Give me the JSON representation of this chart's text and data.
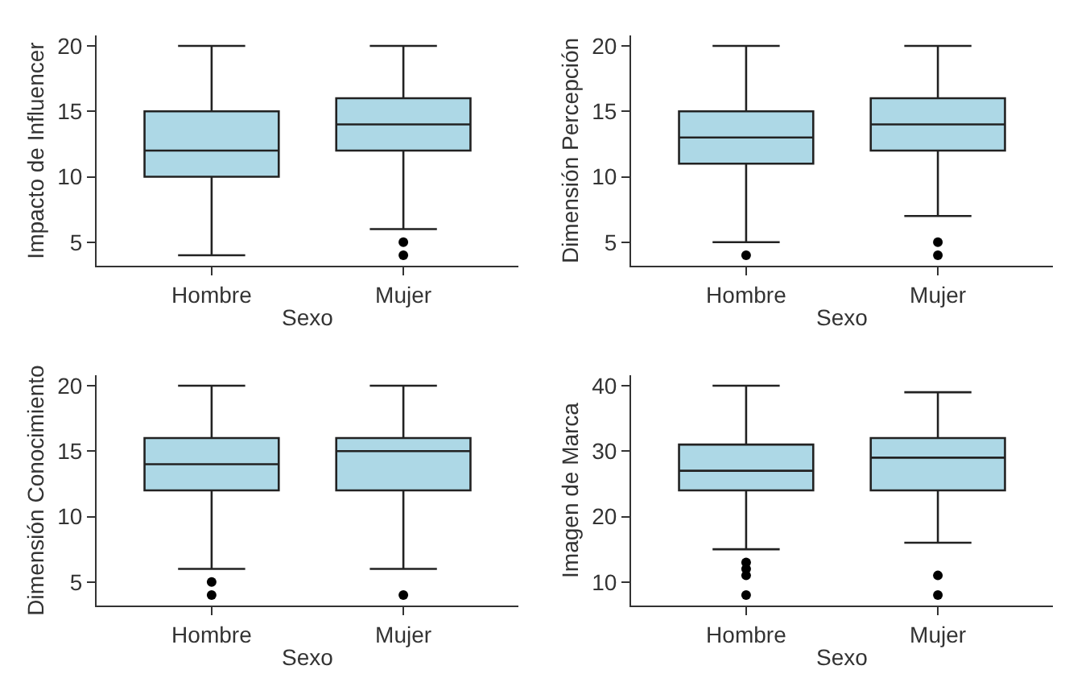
{
  "chart_data": [
    {
      "type": "box",
      "categories": [
        "Hombre",
        "Mujer"
      ],
      "xlabel": "Sexo",
      "ylabel": "Impacto de Influencer",
      "color": "#add8e6",
      "grid": false,
      "ylim": [
        3.2,
        20.8
      ],
      "yticks": [
        5,
        10,
        15,
        20
      ],
      "boxes": [
        {
          "low": 4,
          "q1": 10,
          "median": 12,
          "q3": 15,
          "high": 20
        },
        {
          "low": 6,
          "q1": 12,
          "median": 14,
          "q3": 16,
          "high": 20,
          "outliers": [
            4,
            5
          ]
        }
      ]
    },
    {
      "type": "box",
      "categories": [
        "Hombre",
        "Mujer"
      ],
      "xlabel": "Sexo",
      "ylabel": "Dimensión Percepción",
      "color": "#add8e6",
      "grid": false,
      "ylim": [
        3.2,
        20.8
      ],
      "yticks": [
        5,
        10,
        15,
        20
      ],
      "boxes": [
        {
          "low": 5,
          "q1": 11,
          "median": 13,
          "q3": 15,
          "high": 20,
          "outliers": [
            4
          ]
        },
        {
          "low": 7,
          "q1": 12,
          "median": 14,
          "q3": 16,
          "high": 20,
          "outliers": [
            4,
            5
          ]
        }
      ]
    },
    {
      "type": "box",
      "categories": [
        "Hombre",
        "Mujer"
      ],
      "xlabel": "Sexo",
      "ylabel": "Dimensión Conocimiento",
      "color": "#add8e6",
      "grid": false,
      "ylim": [
        3.2,
        20.8
      ],
      "yticks": [
        5,
        10,
        15,
        20
      ],
      "boxes": [
        {
          "low": 6,
          "q1": 12,
          "median": 14,
          "q3": 16,
          "high": 20,
          "outliers": [
            4,
            5
          ]
        },
        {
          "low": 6,
          "q1": 12,
          "median": 15,
          "q3": 16,
          "high": 20,
          "outliers": [
            4
          ]
        }
      ]
    },
    {
      "type": "box",
      "categories": [
        "Hombre",
        "Mujer"
      ],
      "xlabel": "Sexo",
      "ylabel": "Imagen de Marca",
      "color": "#add8e6",
      "grid": false,
      "ylim": [
        6.4,
        41.6
      ],
      "yticks": [
        10,
        20,
        30,
        40
      ],
      "boxes": [
        {
          "low": 15,
          "q1": 24,
          "median": 27,
          "q3": 31,
          "high": 40,
          "outliers": [
            8,
            11,
            12,
            13
          ]
        },
        {
          "low": 16,
          "q1": 24,
          "median": 29,
          "q3": 32,
          "high": 39,
          "outliers": [
            8,
            11
          ]
        }
      ]
    }
  ]
}
